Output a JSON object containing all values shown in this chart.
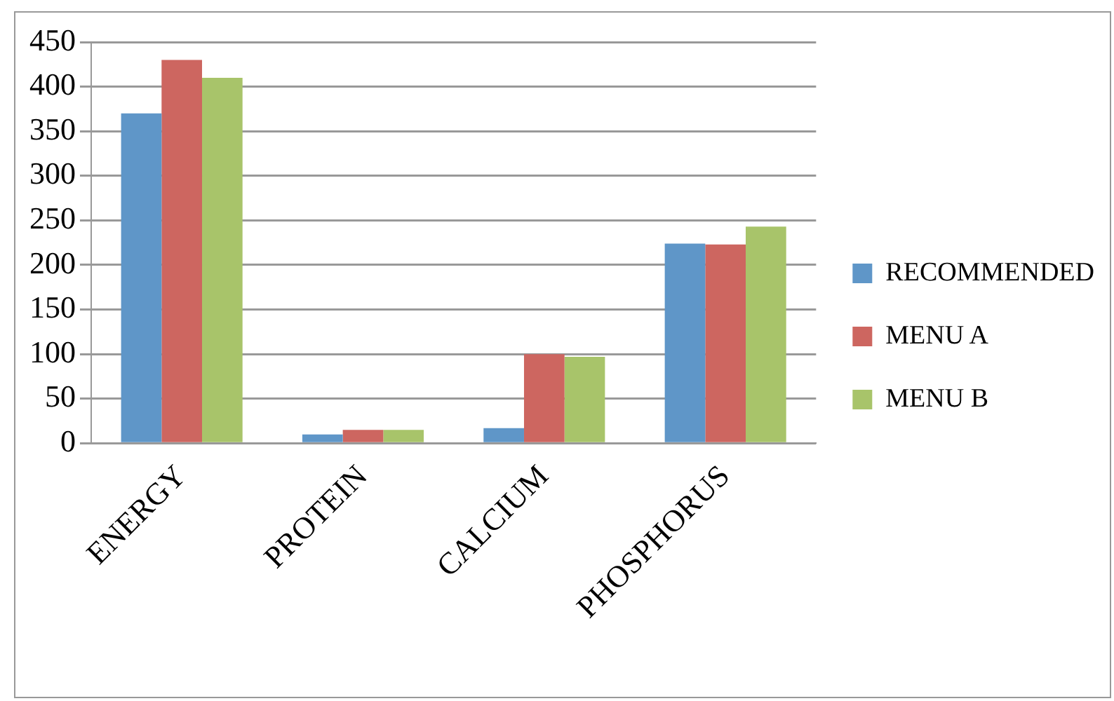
{
  "chart_data": {
    "type": "bar",
    "categories": [
      "ENERGY",
      "PROTEIN",
      "CALCIUM",
      "PHOSPHORUS"
    ],
    "series": [
      {
        "name": "RECOMMENDED",
        "color": "#5f96c8",
        "values": [
          370,
          10,
          17,
          224
        ]
      },
      {
        "name": "MENU A",
        "color": "#cd6660",
        "values": [
          430,
          15,
          100,
          223
        ]
      },
      {
        "name": "MENU B",
        "color": "#a8c46a",
        "values": [
          410,
          15,
          97,
          243
        ]
      }
    ],
    "ylim": [
      0,
      450
    ],
    "yticks": [
      0,
      50,
      100,
      150,
      200,
      250,
      300,
      350,
      400,
      450
    ],
    "grid": "y",
    "legend": "right"
  }
}
